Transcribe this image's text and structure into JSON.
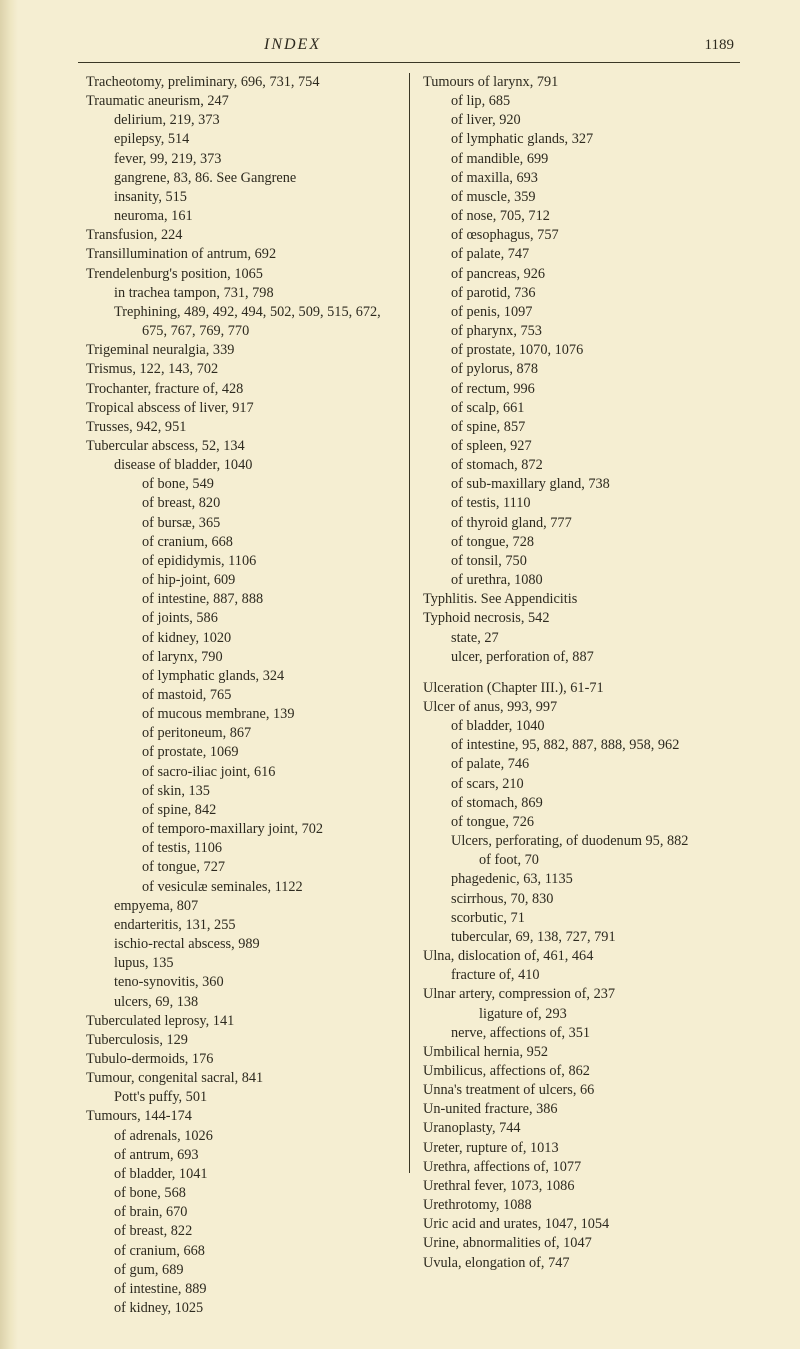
{
  "header": {
    "title": "INDEX",
    "page": "1189"
  },
  "left": [
    {
      "t": "Tracheotomy, preliminary, 696, 731, 754",
      "i": 0
    },
    {
      "t": "Traumatic aneurism, 247",
      "i": 0
    },
    {
      "t": "delirium, 219, 373",
      "i": 1
    },
    {
      "t": "epilepsy, 514",
      "i": 1
    },
    {
      "t": "fever, 99, 219, 373",
      "i": 1
    },
    {
      "t": "gangrene, 83, 86.   See Gangrene",
      "i": 1
    },
    {
      "t": "insanity, 515",
      "i": 1
    },
    {
      "t": "neuroma, 161",
      "i": 1
    },
    {
      "t": "Transfusion, 224",
      "i": 0
    },
    {
      "t": "Transillumination of antrum, 692",
      "i": 0
    },
    {
      "t": "Trendelenburg's position, 1065",
      "i": 0
    },
    {
      "t": "in trachea tampon, 731, 798",
      "i": 1
    },
    {
      "t": "Trephining, 489, 492, 494, 502, 509, 515, 672, 675, 767, 769, 770",
      "i": 0,
      "wrap": true
    },
    {
      "t": "Trigeminal neuralgia, 339",
      "i": 0
    },
    {
      "t": "Trismus, 122, 143, 702",
      "i": 0
    },
    {
      "t": "Trochanter, fracture of, 428",
      "i": 0
    },
    {
      "t": "Tropical abscess of liver, 917",
      "i": 0
    },
    {
      "t": "Trusses, 942, 951",
      "i": 0
    },
    {
      "t": "Tubercular abscess, 52, 134",
      "i": 0
    },
    {
      "t": "disease of bladder, 1040",
      "i": 1
    },
    {
      "t": "of bone, 549",
      "i": 2
    },
    {
      "t": "of breast, 820",
      "i": 2
    },
    {
      "t": "of bursæ, 365",
      "i": 2
    },
    {
      "t": "of cranium, 668",
      "i": 2
    },
    {
      "t": "of epididymis, 1106",
      "i": 2
    },
    {
      "t": "of hip-joint, 609",
      "i": 2
    },
    {
      "t": "of intestine, 887, 888",
      "i": 2
    },
    {
      "t": "of joints, 586",
      "i": 2
    },
    {
      "t": "of kidney, 1020",
      "i": 2
    },
    {
      "t": "of larynx, 790",
      "i": 2
    },
    {
      "t": "of lymphatic glands, 324",
      "i": 2
    },
    {
      "t": "of mastoid, 765",
      "i": 2
    },
    {
      "t": "of mucous membrane, 139",
      "i": 2
    },
    {
      "t": "of peritoneum, 867",
      "i": 2
    },
    {
      "t": "of prostate, 1069",
      "i": 2
    },
    {
      "t": "of sacro-iliac joint, 616",
      "i": 2
    },
    {
      "t": "of skin, 135",
      "i": 2
    },
    {
      "t": "of spine, 842",
      "i": 2
    },
    {
      "t": "of temporo-maxillary joint, 702",
      "i": 2
    },
    {
      "t": "of testis, 1106",
      "i": 2
    },
    {
      "t": "of tongue, 727",
      "i": 2
    },
    {
      "t": "of vesiculæ seminales, 1122",
      "i": 2
    },
    {
      "t": "empyema, 807",
      "i": 1
    },
    {
      "t": "endarteritis, 131, 255",
      "i": 1
    },
    {
      "t": "ischio-rectal abscess, 989",
      "i": 1
    },
    {
      "t": "lupus, 135",
      "i": 1
    },
    {
      "t": "teno-synovitis, 360",
      "i": 1
    },
    {
      "t": "ulcers, 69, 138",
      "i": 1
    },
    {
      "t": "Tuberculated leprosy, 141",
      "i": 0
    },
    {
      "t": "Tuberculosis, 129",
      "i": 0
    },
    {
      "t": "Tubulo-dermoids, 176",
      "i": 0
    },
    {
      "t": "Tumour, congenital sacral, 841",
      "i": 0
    },
    {
      "t": "Pott's puffy, 501",
      "i": 1
    },
    {
      "t": "Tumours, 144-174",
      "i": 0
    },
    {
      "t": "of adrenals, 1026",
      "i": 1
    },
    {
      "t": "of antrum, 693",
      "i": 1
    },
    {
      "t": "of bladder, 1041",
      "i": 1
    },
    {
      "t": "of bone, 568",
      "i": 1
    },
    {
      "t": "of brain, 670",
      "i": 1
    },
    {
      "t": "of breast, 822",
      "i": 1
    },
    {
      "t": "of cranium, 668",
      "i": 1
    },
    {
      "t": "of gum, 689",
      "i": 1
    },
    {
      "t": "of intestine, 889",
      "i": 1
    },
    {
      "t": "of kidney, 1025",
      "i": 1
    }
  ],
  "right": [
    {
      "t": "Tumours of larynx, 791",
      "i": 0
    },
    {
      "t": "of lip, 685",
      "i": 1
    },
    {
      "t": "of liver, 920",
      "i": 1
    },
    {
      "t": "of lymphatic glands, 327",
      "i": 1
    },
    {
      "t": "of mandible, 699",
      "i": 1
    },
    {
      "t": "of maxilla, 693",
      "i": 1
    },
    {
      "t": "of muscle, 359",
      "i": 1
    },
    {
      "t": "of nose, 705, 712",
      "i": 1
    },
    {
      "t": "of œsophagus, 757",
      "i": 1
    },
    {
      "t": "of palate, 747",
      "i": 1
    },
    {
      "t": "of pancreas, 926",
      "i": 1
    },
    {
      "t": "of parotid, 736",
      "i": 1
    },
    {
      "t": "of penis, 1097",
      "i": 1
    },
    {
      "t": "of pharynx, 753",
      "i": 1
    },
    {
      "t": "of prostate, 1070, 1076",
      "i": 1
    },
    {
      "t": "of pylorus, 878",
      "i": 1
    },
    {
      "t": "of rectum, 996",
      "i": 1
    },
    {
      "t": "of scalp, 661",
      "i": 1
    },
    {
      "t": "of spine, 857",
      "i": 1
    },
    {
      "t": "of spleen, 927",
      "i": 1
    },
    {
      "t": "of stomach, 872",
      "i": 1
    },
    {
      "t": "of sub-maxillary gland, 738",
      "i": 1
    },
    {
      "t": "of testis, 1110",
      "i": 1
    },
    {
      "t": "of thyroid gland, 777",
      "i": 1
    },
    {
      "t": "of tongue, 728",
      "i": 1
    },
    {
      "t": "of tonsil, 750",
      "i": 1
    },
    {
      "t": "of urethra, 1080",
      "i": 1
    },
    {
      "t": "Typhlitis.   See Appendicitis",
      "i": 0
    },
    {
      "t": "Typhoid necrosis, 542",
      "i": 0
    },
    {
      "t": "state, 27",
      "i": 1
    },
    {
      "t": "ulcer, perforation of, 887",
      "i": 1
    },
    {
      "t": "Ulceration (Chapter III.), 61-71",
      "i": 0,
      "gap": true
    },
    {
      "t": "Ulcer of anus, 993, 997",
      "i": 0
    },
    {
      "t": "of bladder, 1040",
      "i": 1
    },
    {
      "t": "of intestine, 95, 882, 887, 888, 958, 962",
      "i": 1,
      "wrap": true
    },
    {
      "t": "of palate, 746",
      "i": 1
    },
    {
      "t": "of scars, 210",
      "i": 1
    },
    {
      "t": "of stomach, 869",
      "i": 1
    },
    {
      "t": "of tongue, 726",
      "i": 1
    },
    {
      "t": "Ulcers, perforating, of duodenum 95, 882",
      "i": 0,
      "wrap": true
    },
    {
      "t": "of foot, 70",
      "i": 2
    },
    {
      "t": "phagedenic, 63, 1135",
      "i": 1
    },
    {
      "t": "scirrhous, 70, 830",
      "i": 1
    },
    {
      "t": "scorbutic, 71",
      "i": 1
    },
    {
      "t": "tubercular, 69, 138, 727, 791",
      "i": 1
    },
    {
      "t": "Ulna, dislocation of, 461, 464",
      "i": 0
    },
    {
      "t": "fracture of, 410",
      "i": 1
    },
    {
      "t": "Ulnar artery, compression of, 237",
      "i": 0
    },
    {
      "t": "ligature of, 293",
      "i": 2
    },
    {
      "t": "nerve, affections of, 351",
      "i": 1
    },
    {
      "t": "Umbilical hernia, 952",
      "i": 0
    },
    {
      "t": "Umbilicus, affections of, 862",
      "i": 0
    },
    {
      "t": "Unna's treatment of ulcers, 66",
      "i": 0
    },
    {
      "t": "Un-united fracture, 386",
      "i": 0
    },
    {
      "t": "Uranoplasty, 744",
      "i": 0
    },
    {
      "t": "Ureter, rupture of, 1013",
      "i": 0
    },
    {
      "t": "Urethra, affections of, 1077",
      "i": 0
    },
    {
      "t": "Urethral fever, 1073, 1086",
      "i": 0
    },
    {
      "t": "Urethrotomy, 1088",
      "i": 0
    },
    {
      "t": "Uric acid and urates, 1047, 1054",
      "i": 0
    },
    {
      "t": "Urine, abnormalities of, 1047",
      "i": 0
    },
    {
      "t": "Uvula, elongation of, 747",
      "i": 0
    }
  ]
}
